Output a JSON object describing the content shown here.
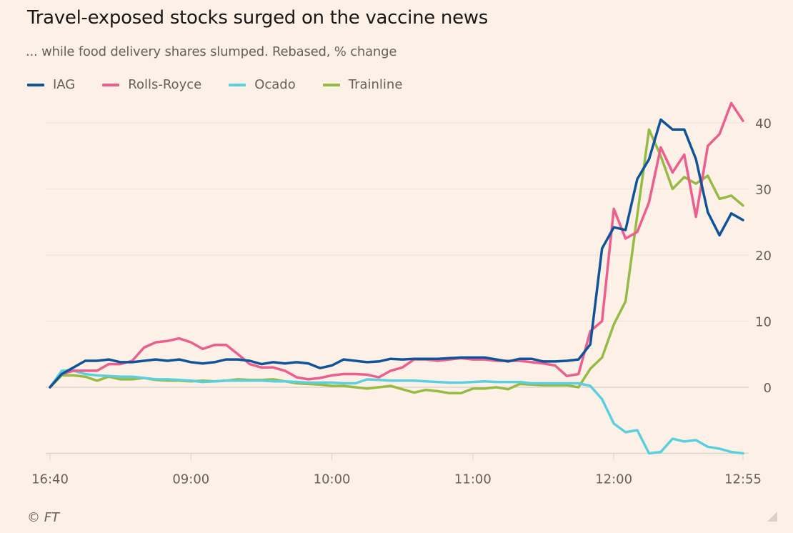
{
  "header": {
    "title": "Travel-exposed stocks surged on the vaccine news",
    "subtitle": "... while food delivery shares slumped. Rebased, % change"
  },
  "footer": {
    "source": "© FT"
  },
  "chart_data": {
    "type": "line",
    "title": "Travel-exposed stocks surged on the vaccine news",
    "subtitle": "... while food delivery shares slumped. Rebased, % change",
    "xlabel": "",
    "ylabel": "Rebased, % change",
    "x_tick_labels": [
      "16:40",
      "09:00",
      "10:00",
      "11:00",
      "12:00",
      "12:55"
    ],
    "x_tick_index": [
      0,
      12,
      24,
      36,
      48,
      59
    ],
    "y_ticks": [
      0,
      10,
      20,
      30,
      40
    ],
    "ylim": [
      -10,
      40
    ],
    "y_axis_side": "right",
    "grid": true,
    "legend_position": "top-left",
    "x_note": "60 points: previous close (16:40) followed by 5-minute intervals 08:05 to 12:55",
    "series": [
      {
        "name": "IAG",
        "color": "#0f5499",
        "values": [
          0,
          2,
          3,
          4,
          4,
          4.2,
          3.8,
          3.8,
          4,
          4.2,
          4,
          4.2,
          3.8,
          3.6,
          3.8,
          4.2,
          4.2,
          4,
          3.5,
          3.8,
          3.6,
          3.8,
          3.6,
          2.9,
          3.3,
          4.2,
          4,
          3.8,
          3.9,
          4.3,
          4.2,
          4.3,
          4.3,
          4.3,
          4.4,
          4.5,
          4.5,
          4.5,
          4.2,
          3.9,
          4.3,
          4.3,
          3.9,
          3.9,
          4,
          4.2,
          6.5,
          21,
          24.2,
          23.8,
          31.5,
          34.5,
          40.5,
          39,
          39,
          34.5,
          26.5,
          23,
          26.3,
          25.3
        ]
      },
      {
        "name": "Rolls-Royce",
        "color": "#eb5e8d",
        "values": [
          0,
          2,
          2.5,
          2.5,
          2.5,
          3.5,
          3.5,
          4,
          6,
          6.8,
          7,
          7.4,
          6.8,
          5.8,
          6.4,
          6.4,
          5,
          3.5,
          3,
          3,
          2.5,
          1.5,
          1.2,
          1.4,
          1.8,
          2,
          2,
          1.9,
          1.5,
          2.5,
          3,
          4.2,
          4.2,
          4,
          4.2,
          4.4,
          4.2,
          4.2,
          4,
          4,
          4,
          3.8,
          3.6,
          3.3,
          1.7,
          2,
          8.5,
          10,
          27,
          22.5,
          23.5,
          28,
          36.3,
          32.5,
          35.2,
          25.8,
          36.5,
          38.3,
          43,
          40.3
        ]
      },
      {
        "name": "Ocado",
        "color": "#5acfe0",
        "values": [
          0,
          2.5,
          2.5,
          2,
          1.8,
          1.7,
          1.6,
          1.6,
          1.4,
          1.2,
          1.2,
          1.1,
          1,
          0.8,
          0.9,
          1,
          1,
          1,
          1,
          0.9,
          0.9,
          0.8,
          0.7,
          0.7,
          0.7,
          0.6,
          0.6,
          1.2,
          1.1,
          1,
          1,
          1,
          0.9,
          0.8,
          0.7,
          0.7,
          0.8,
          0.9,
          0.8,
          0.8,
          0.8,
          0.6,
          0.6,
          0.6,
          0.6,
          0.6,
          0.2,
          -1.8,
          -5.5,
          -6.8,
          -6.5,
          -10,
          -9.8,
          -7.8,
          -8.2,
          -8,
          -9,
          -9.3,
          -9.8,
          -10
        ]
      },
      {
        "name": "Trainline",
        "color": "#96bb44",
        "values": [
          0,
          1.8,
          1.8,
          1.6,
          1,
          1.6,
          1.2,
          1.2,
          1.4,
          1.1,
          1,
          1,
          0.9,
          1,
          0.9,
          1,
          1.2,
          1.1,
          1.1,
          1.2,
          0.9,
          0.6,
          0.5,
          0.4,
          0.2,
          0.2,
          0,
          -0.2,
          0,
          0.2,
          -0.3,
          -0.8,
          -0.4,
          -0.6,
          -0.9,
          -0.9,
          -0.2,
          -0.2,
          0,
          -0.3,
          0.5,
          0.4,
          0.3,
          0.3,
          0.3,
          0,
          2.8,
          4.5,
          9.5,
          13,
          26,
          39,
          35,
          30,
          31.8,
          30.8,
          32,
          28.5,
          29,
          27.5
        ]
      }
    ]
  }
}
